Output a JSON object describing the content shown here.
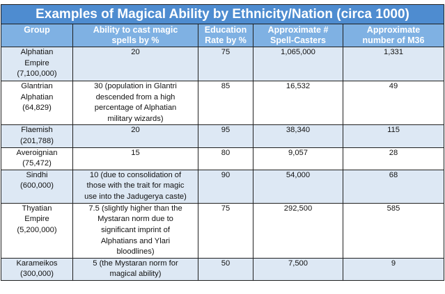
{
  "title": "Examples of Magical Ability by Ethnicity/Nation (circa 1000)",
  "headers": [
    [
      "Group"
    ],
    [
      "Ability to cast magic",
      "spells by %"
    ],
    [
      "Education",
      "Rate by %"
    ],
    [
      "Approximate #",
      "Spell-Casters"
    ],
    [
      "Approximate",
      "number of M36"
    ]
  ],
  "rows": [
    {
      "group": [
        "Alphatian",
        "Empire",
        "(7,100,000)"
      ],
      "ability": [
        "20"
      ],
      "education": "75",
      "casters": "1,065,000",
      "m36": "1,331"
    },
    {
      "group": [
        "Glantrian",
        "Alphatian",
        "(64,829)"
      ],
      "ability": [
        "30 (population in Glantri",
        "descended from a high",
        "percentage of Alphatian",
        "military wizards)"
      ],
      "education": "85",
      "casters": "16,532",
      "m36": "49"
    },
    {
      "group": [
        "Flaemish",
        "(201,788)"
      ],
      "ability": [
        "20"
      ],
      "education": "95",
      "casters": "38,340",
      "m36": "115"
    },
    {
      "group": [
        "Averoignian",
        "(75,472)"
      ],
      "ability": [
        "15"
      ],
      "education": "80",
      "casters": "9,057",
      "m36": "28"
    },
    {
      "group": [
        "Sindhi",
        "(600,000)"
      ],
      "ability": [
        "10 (due to consolidation of",
        "those with the trait for magic",
        "use into the Jadugerya caste)"
      ],
      "education": "90",
      "casters": "54,000",
      "m36": "68"
    },
    {
      "group": [
        "Thyatian",
        "Empire",
        "(5,200,000)"
      ],
      "ability": [
        "7.5 (slightly higher than the",
        "Mystaran norm due to",
        "significant  imprint of",
        "Alphatians and Ylari",
        "bloodlines)"
      ],
      "education": "75",
      "casters": "292,500",
      "m36": "585"
    },
    {
      "group": [
        "Karameikos",
        "(300,000)"
      ],
      "ability": [
        "5 (the Mystaran norm for",
        "magical ability)"
      ],
      "education": "50",
      "casters": "7,500",
      "m36": "9"
    }
  ]
}
